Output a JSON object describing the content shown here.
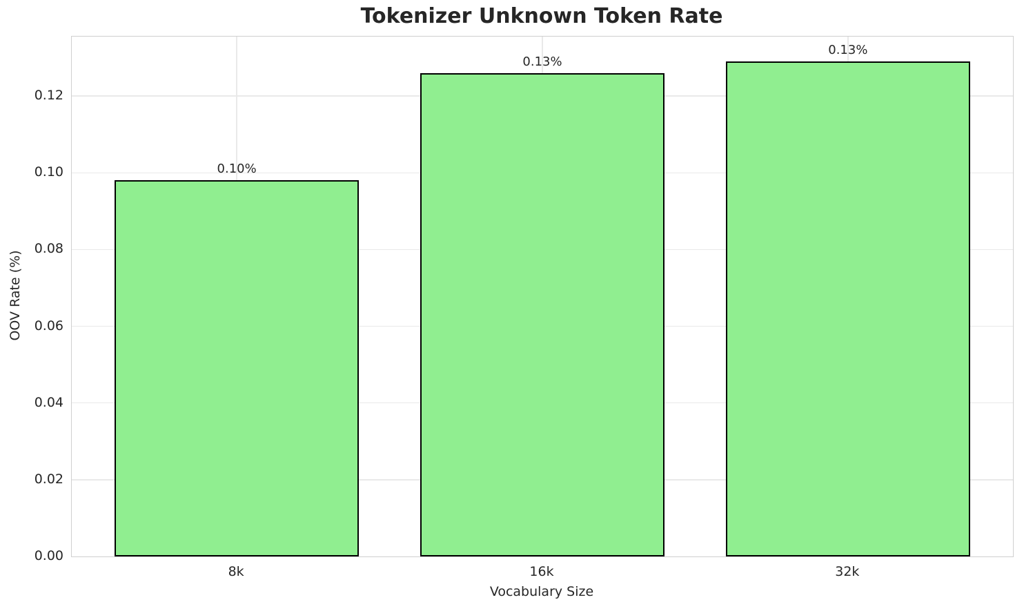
{
  "chart_data": {
    "type": "bar",
    "title": "Tokenizer Unknown Token Rate",
    "xlabel": "Vocabulary Size",
    "ylabel": "OOV Rate (%)",
    "categories": [
      "8k",
      "16k",
      "32k"
    ],
    "values": [
      0.098,
      0.126,
      0.129
    ],
    "bar_labels": [
      "0.10%",
      "0.13%",
      "0.13%"
    ],
    "yticks": [
      0.0,
      0.02,
      0.04,
      0.06,
      0.08,
      0.1,
      0.12
    ],
    "ytick_labels": [
      "0.00",
      "0.02",
      "0.04",
      "0.06",
      "0.08",
      "0.10",
      "0.12"
    ],
    "ylim": [
      0,
      0.1355
    ],
    "grid": true,
    "legend_position": "none",
    "colors": {
      "bar_fill": "#90ee90",
      "bar_edge": "#000000",
      "grid": "#e9e9e9",
      "spine": "#cfcfcf",
      "text": "#262626",
      "background": "#ffffff"
    }
  }
}
